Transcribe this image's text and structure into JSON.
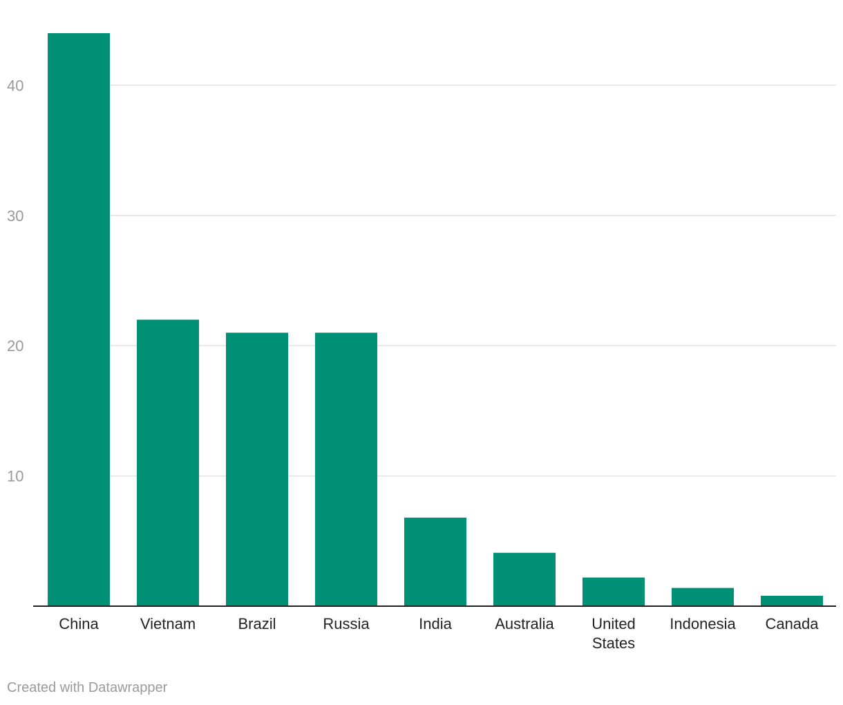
{
  "chart_data": {
    "type": "bar",
    "categories": [
      [
        "China"
      ],
      [
        "Vietnam"
      ],
      [
        "Brazil"
      ],
      [
        "Russia"
      ],
      [
        "India"
      ],
      [
        "Australia"
      ],
      [
        "United",
        "States"
      ],
      [
        "Indonesia"
      ],
      [
        "Canada"
      ]
    ],
    "values": [
      44,
      22,
      21,
      21,
      6.8,
      4.1,
      2.2,
      1.4,
      0.8
    ],
    "ylim": [
      0,
      44
    ],
    "yticks": [
      10,
      20,
      30,
      40
    ],
    "grid": true,
    "bar_color": "#009076",
    "grid_color": "#e2e2e2",
    "baseline_color": "#222222"
  },
  "footer": {
    "credit": "Created with Datawrapper"
  }
}
